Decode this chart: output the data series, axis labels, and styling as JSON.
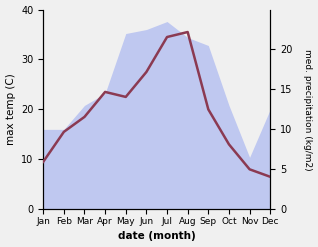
{
  "months": [
    "Jan",
    "Feb",
    "Mar",
    "Apr",
    "May",
    "Jun",
    "Jul",
    "Aug",
    "Sep",
    "Oct",
    "Nov",
    "Dec"
  ],
  "temp": [
    9.5,
    15.5,
    18.5,
    23.5,
    22.5,
    27.5,
    34.5,
    35.5,
    20.0,
    13.0,
    8.0,
    6.5
  ],
  "precip": [
    10.0,
    10.0,
    13.0,
    14.5,
    22.0,
    22.5,
    23.5,
    21.5,
    20.5,
    13.0,
    6.5,
    12.5
  ],
  "temp_color": "#8B3A52",
  "precip_fill_color": "#bfc8f0",
  "xlabel": "date (month)",
  "ylabel_left": "max temp (C)",
  "ylabel_right": "med. precipitation (kg/m2)",
  "ylim_left": [
    0,
    40
  ],
  "ylim_right": [
    0,
    25
  ],
  "yticks_left": [
    0,
    10,
    20,
    30,
    40
  ],
  "yticks_right": [
    0,
    5,
    10,
    15,
    20
  ]
}
